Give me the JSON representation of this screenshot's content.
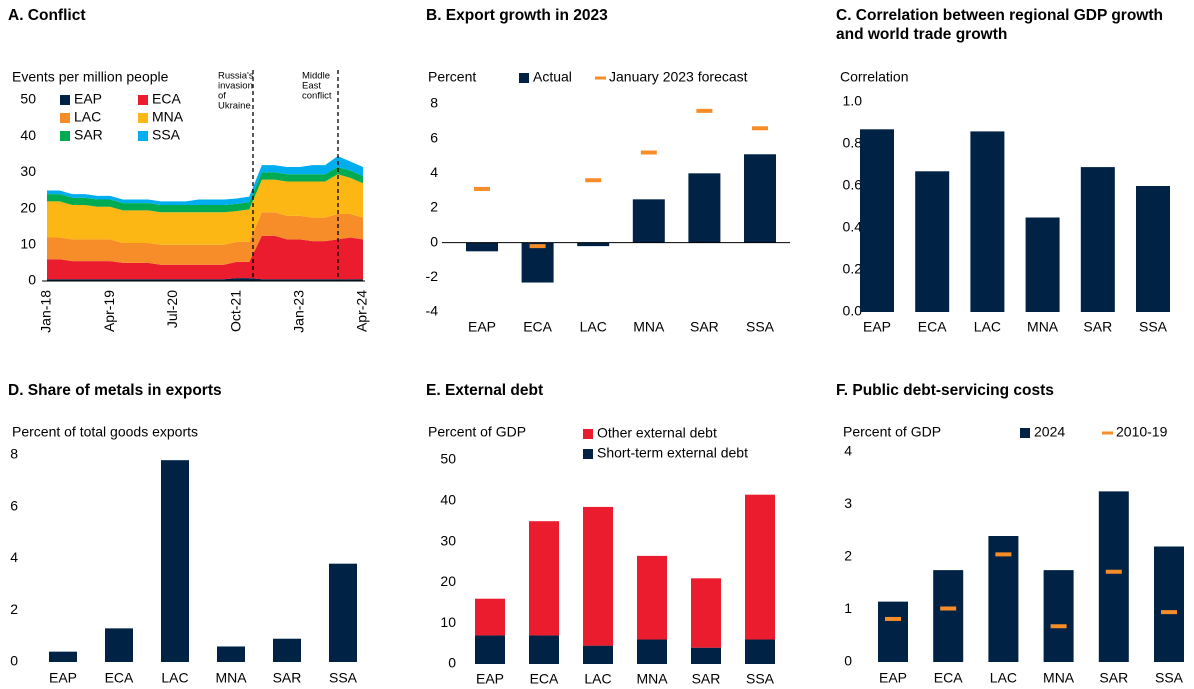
{
  "chart_data": [
    {
      "type": "area",
      "stacked": true,
      "title": "A. Conflict",
      "y_label": "Events per million people",
      "x": [
        "Jan-18",
        null,
        null,
        null,
        null,
        "Apr-19",
        null,
        null,
        null,
        null,
        "Jul-20",
        null,
        null,
        null,
        null,
        "Oct-21",
        null,
        null,
        null,
        null,
        "Jan-23",
        null,
        null,
        null,
        null,
        "Apr-24"
      ],
      "series": [
        {
          "name": "EAP",
          "color": "#002345",
          "values": [
            0.5,
            0.5,
            0.5,
            0.5,
            0.5,
            0.5,
            0.5,
            0.5,
            0.5,
            0.5,
            0.5,
            0.5,
            0.5,
            0.5,
            0.5,
            0.8,
            0.8,
            0.5,
            0.5,
            0.5,
            0.5,
            0.5,
            0.5,
            0.5,
            0.5,
            0.5
          ]
        },
        {
          "name": "ECA",
          "color": "#eb1c2d",
          "values": [
            5.5,
            5.5,
            5,
            5,
            5,
            5,
            4.5,
            4.5,
            4.5,
            4,
            4,
            4,
            4,
            4,
            4,
            4.5,
            4.5,
            12,
            12,
            11,
            11,
            10.5,
            10.5,
            11,
            11.5,
            11
          ]
        },
        {
          "name": "LAC",
          "color": "#f78d28",
          "values": [
            6,
            6,
            6,
            6,
            6,
            6,
            5.5,
            5.5,
            5.5,
            5.5,
            5.5,
            5.5,
            5.5,
            5.5,
            5.5,
            5.5,
            5.5,
            6.5,
            6.5,
            6.5,
            6.5,
            6.5,
            6.5,
            7,
            6.5,
            6
          ]
        },
        {
          "name": "MNA",
          "color": "#fdb714",
          "values": [
            10,
            10,
            9.5,
            9.5,
            9,
            9,
            9,
            9,
            9,
            9,
            9,
            9,
            9,
            9,
            9,
            8.5,
            9,
            9,
            9,
            9.5,
            9.5,
            10,
            10,
            11,
            10,
            9.5
          ]
        },
        {
          "name": "SAR",
          "color": "#00ab51",
          "values": [
            2,
            2,
            2,
            2,
            2,
            2,
            2,
            2,
            2,
            2,
            2,
            2,
            2,
            2,
            2,
            2,
            2,
            2,
            2,
            2,
            2,
            2,
            2,
            2,
            2,
            2
          ]
        },
        {
          "name": "SSA",
          "color": "#00aeef",
          "values": [
            1,
            1,
            1,
            1,
            1,
            1,
            1,
            1,
            1,
            1,
            1,
            1,
            1.5,
            1.5,
            1.5,
            1.5,
            1.5,
            2,
            2,
            2,
            2,
            2.5,
            2.5,
            3,
            2.5,
            2.5
          ]
        }
      ],
      "ylim": [
        0,
        50
      ],
      "yticks": [
        0,
        10,
        20,
        30,
        40,
        50
      ],
      "annotations": [
        [
          "Russia's",
          "invasion",
          "of",
          "Ukraine"
        ],
        [
          "Middle",
          "East",
          "conflict"
        ]
      ]
    },
    {
      "type": "bar",
      "title": "B. Export growth in 2023",
      "y_label": "Percent",
      "categories": [
        "EAP",
        "ECA",
        "LAC",
        "MNA",
        "SAR",
        "SSA"
      ],
      "series": [
        {
          "name": "Actual",
          "kind": "bar",
          "color": "#002345",
          "values": [
            -0.5,
            -2.3,
            -0.2,
            2.5,
            4.0,
            5.1
          ]
        },
        {
          "name": "January 2023 forecast",
          "kind": "dash",
          "color": "#f78d28",
          "values": [
            3.1,
            -0.2,
            3.6,
            5.2,
            7.6,
            6.6
          ]
        }
      ],
      "ylim": [
        -4,
        8
      ],
      "yticks": [
        -4,
        -2,
        0,
        2,
        4,
        6,
        8
      ]
    },
    {
      "type": "bar",
      "title": "C. Correlation between regional GDP growth and world trade growth",
      "y_label": "Correlation",
      "categories": [
        "EAP",
        "ECA",
        "LAC",
        "MNA",
        "SAR",
        "SSA"
      ],
      "values": [
        0.87,
        0.67,
        0.86,
        0.45,
        0.69,
        0.6
      ],
      "color": "#002345",
      "ylim": [
        0,
        1
      ],
      "yticks": [
        {
          "value": 0,
          "label": "0.0"
        },
        0.2,
        0.4,
        0.6,
        0.8,
        {
          "value": 1,
          "label": "1.0"
        }
      ]
    },
    {
      "type": "bar",
      "title": "D. Share of metals in exports",
      "y_label": "Percent of total goods exports",
      "categories": [
        "EAP",
        "ECA",
        "LAC",
        "MNA",
        "SAR",
        "SSA"
      ],
      "values": [
        0.4,
        1.3,
        7.8,
        0.6,
        0.9,
        3.8
      ],
      "color": "#002345",
      "ylim": [
        0,
        8
      ],
      "yticks": [
        0,
        2,
        4,
        6,
        8
      ]
    },
    {
      "type": "bar",
      "stacked": true,
      "title": "E. External debt",
      "y_label": "Percent of GDP",
      "categories": [
        "EAP",
        "ECA",
        "LAC",
        "MNA",
        "SAR",
        "SSA"
      ],
      "series": [
        {
          "name": "Short-term external debt",
          "kind": "bar",
          "color": "#002345",
          "values": [
            7,
            7,
            4.5,
            6,
            4,
            6
          ]
        },
        {
          "name": "Other external debt",
          "kind": "bar",
          "color": "#eb1c2d",
          "values": [
            9,
            28,
            34,
            20.5,
            17,
            35.5
          ]
        }
      ],
      "ylim": [
        0,
        50
      ],
      "yticks": [
        0,
        10,
        20,
        30,
        40,
        50
      ]
    },
    {
      "type": "bar",
      "title": "F. Public debt-servicing costs",
      "y_label": "Percent of GDP",
      "categories": [
        "EAP",
        "ECA",
        "LAC",
        "MNA",
        "SAR",
        "SSA"
      ],
      "series": [
        {
          "name": "2024",
          "kind": "bar",
          "color": "#002345",
          "values": [
            1.15,
            1.75,
            2.4,
            1.75,
            3.25,
            2.2
          ]
        },
        {
          "name": "2010-19",
          "kind": "dash",
          "color": "#f78d28",
          "values": [
            0.82,
            1.02,
            2.05,
            0.68,
            1.72,
            0.95
          ]
        }
      ],
      "ylim": [
        0,
        4
      ],
      "yticks": [
        0,
        1,
        2,
        3,
        4
      ]
    }
  ]
}
